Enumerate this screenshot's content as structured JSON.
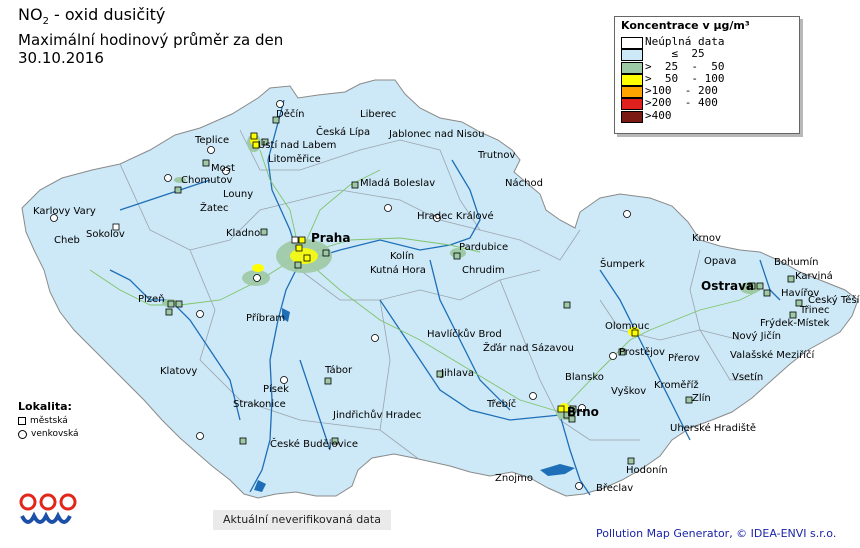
{
  "title": {
    "pollutant_main": "NO",
    "pollutant_sub": "2",
    "pollutant_rest": " - oxid dusičitý",
    "subtitle": "Maximální hodinový průměr za den",
    "date": "30.10.2016"
  },
  "legend": {
    "title": "Koncentrace v µg/m³",
    "items": [
      {
        "label": "Neúplná data",
        "color": "#ffffff"
      },
      {
        "label": "    ≤  25",
        "color": "#cde8f6"
      },
      {
        "label": ">  25  -  50",
        "color": "#9ec9a5"
      },
      {
        "label": ">  50  - 100",
        "color": "#ffff00"
      },
      {
        "label": ">100  - 200",
        "color": "#ffa500"
      },
      {
        "label": ">200  - 400",
        "color": "#e0201c"
      },
      {
        "label": ">400",
        "color": "#7a1a12"
      }
    ]
  },
  "station_types": {
    "title": "Lokalita:",
    "urban": "městská",
    "rural": "venkovská"
  },
  "cities": {
    "decin": "Děčín",
    "liberec": "Liberec",
    "teplice": "Teplice",
    "ceska_lipa": "Česká Lípa",
    "jablonec": "Jablonec nad Nisou",
    "usti": "Ústí nad Labem",
    "litomerice": "Litoměřice",
    "trutnov": "Trutnov",
    "most": "Most",
    "chomutov": "Chomutov",
    "mlada_boleslav": "Mladá Boleslav",
    "nachod": "Náchod",
    "louny": "Louny",
    "zatec": "Žatec",
    "karlovy_vary": "Karlovy Vary",
    "sokolov": "Sokolov",
    "cheb": "Cheb",
    "kladno": "Kladno",
    "praha": "Praha",
    "hradec": "Hradec Králové",
    "krnov": "Krnov",
    "bohumin": "Bohumín",
    "pardubice": "Pardubice",
    "opava": "Opava",
    "karvina": "Karviná",
    "kolin": "Kolín",
    "sumperk": "Šumperk",
    "ostrava": "Ostrava",
    "havirov": "Havířov",
    "kutna_hora": "Kutná Hora",
    "chrudim": "Chrudim",
    "cesky_tesin": "Český Těšín",
    "trinec": "Třinec",
    "plzen": "Plzeň",
    "frydek": "Frýdek-Místek",
    "pribram": "Příbram",
    "olomouc": "Olomouc",
    "havlickuv_brod": "Havlíčkův Brod",
    "novy_jicin": "Nový Jičín",
    "zdar": "Žďár nad Sázavou",
    "prostejov": "Prostějov",
    "prerov": "Přerov",
    "valasske": "Valašské Meziříčí",
    "klatovy": "Klatovy",
    "tabor": "Tábor",
    "jihlava": "Jihlava",
    "blansko": "Blansko",
    "vsetin": "Vsetín",
    "pisek": "Písek",
    "kromeriz": "Kroměříž",
    "vyskov": "Vyškov",
    "strakonice": "Strakonice",
    "zlin": "Zlín",
    "jindrichuv": "Jindřichův Hradec",
    "trebic": "Třebíč",
    "brno": "Brno",
    "uherske": "Uherské Hradiště",
    "budejovice": "České Budějovice",
    "hodonin": "Hodonín",
    "znojmo": "Znojmo",
    "breclav": "Břeclav"
  },
  "disclaimer": "Aktuální neverifikovaná data",
  "credit": "Pollution Map Generator, © IDEA-ENVI s.r.o.",
  "colors": {
    "land": "#cde8f6",
    "border": "#8a8a8a",
    "rivers": "#1e6fb8",
    "roads": "#7ec46a",
    "level_25_50": "#9ec9a5",
    "level_50_100": "#ffff00"
  }
}
